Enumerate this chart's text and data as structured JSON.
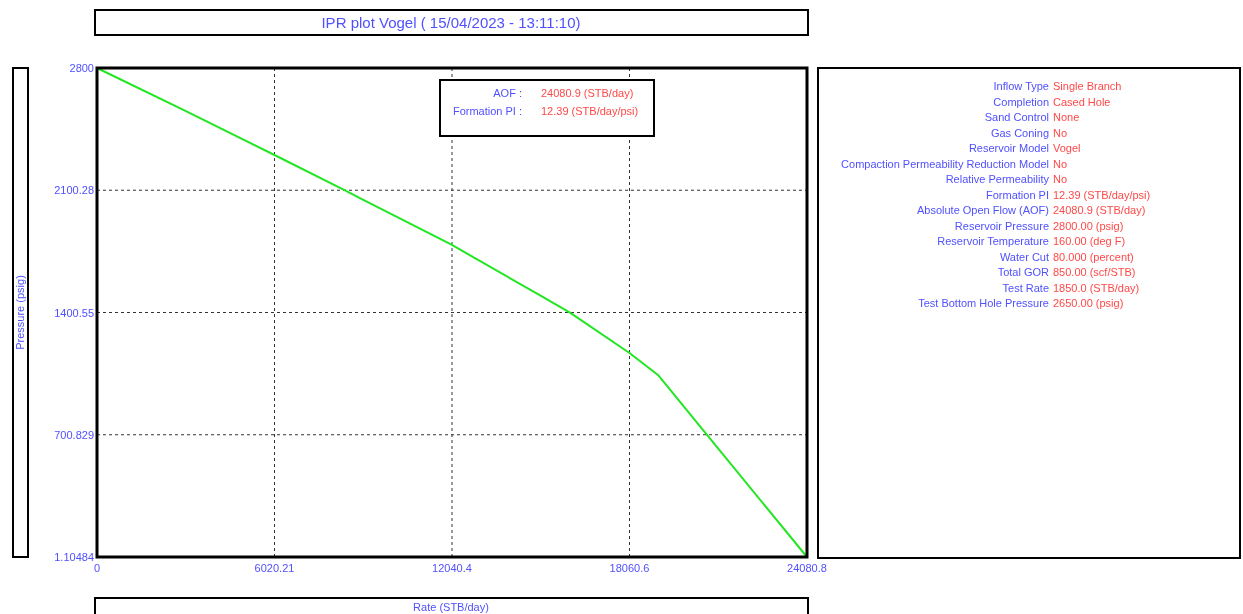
{
  "chart_data": [
    {
      "type": "line",
      "title": "IPR plot  Vogel ( 15/04/2023 - 13:11:10)",
      "xlabel": "Rate  (STB/day)",
      "ylabel": "Pressure  (psig)",
      "x": [
        0,
        3000,
        6020,
        8411,
        9000,
        12040,
        15000,
        16042,
        18060,
        19027,
        20689,
        24080.8
      ],
      "series": [
        {
          "color": "#22e622",
          "values": [
            2800,
            2555,
            2302,
            2100,
            2048,
            1787,
            1501,
            1400,
            1169,
            1043,
            700,
            1.10484
          ]
        }
      ],
      "xlim": [
        0,
        24080.8
      ],
      "xticks": [
        0,
        6020.21,
        12040.4,
        18060.6,
        24080.8
      ],
      "ylim": [
        1.10484,
        2800
      ],
      "yticks": [
        1.10484,
        700.829,
        1400.55,
        2100.28,
        2800
      ],
      "grid": true,
      "line_style": "solid",
      "marker": "none",
      "annotations": [
        "AOF :",
        "24080.9 (STB/day)",
        "Formation PI :",
        "12.39 (STB/day/psi)"
      ]
    },
    {
      "type": "other",
      "categories": [
        "Inflow Type",
        "Completion",
        "Sand Control",
        "Gas Coning",
        "Reservoir Model",
        "Compaction Permeability Reduction Model",
        "Relative Permeability",
        "Formation PI",
        "Absolute Open Flow (AOF)",
        "Reservoir Pressure",
        "Reservoir Temperature",
        "Water Cut",
        "Total GOR",
        "Test Rate",
        "Test Bottom Hole Pressure"
      ],
      "value_labels": [
        "Single Branch",
        "Cased Hole",
        "None",
        "No",
        "Vogel",
        "No",
        "No",
        "12.39  (STB/day/psi)",
        "24080.9  (STB/day)",
        "2800.00  (psig)",
        "160.00  (deg F)",
        "80.000  (percent)",
        "850.00  (scf/STB)",
        "1850.0  (STB/day)",
        "2650.00  (psig)"
      ]
    }
  ]
}
